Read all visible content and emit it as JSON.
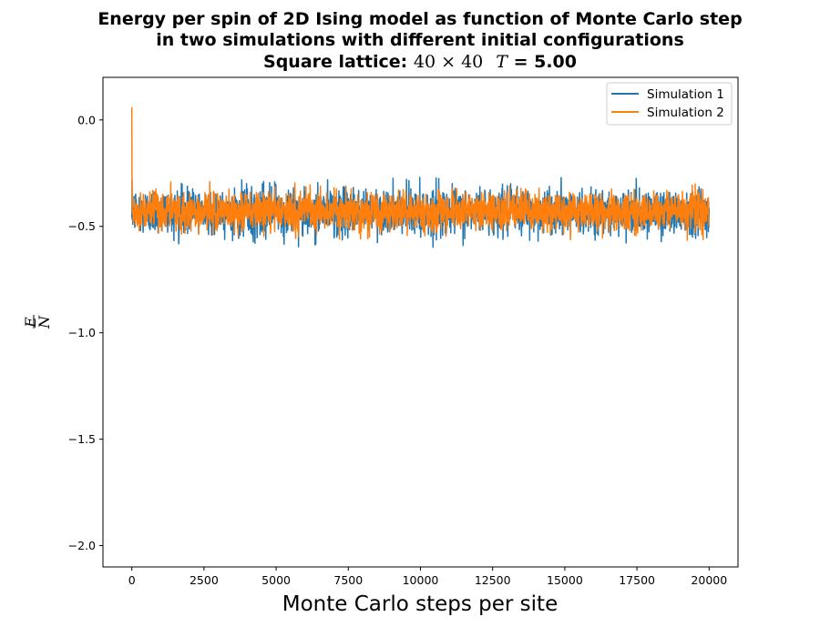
{
  "chart_data": {
    "type": "line",
    "title_lines": [
      "Energy per spin of 2D Ising model as function of Monte Carlo step",
      "in two simulations with different initial configurations"
    ],
    "title_line3": {
      "prefix": "Square lattice: ",
      "lattice": "40 × 40",
      "temp_symbol": "T",
      "temp_value": " = 5.00"
    },
    "xlabel": "Monte Carlo steps per site",
    "ylabel": {
      "numerator": "E",
      "denominator": "N"
    },
    "xlim": [
      -1000,
      21000
    ],
    "ylim": [
      -2.1,
      0.2
    ],
    "xticks": [
      0,
      2500,
      5000,
      7500,
      10000,
      12500,
      15000,
      17500,
      20000
    ],
    "xtick_labels": [
      "0",
      "2500",
      "5000",
      "7500",
      "10000",
      "12500",
      "15000",
      "17500",
      "20000"
    ],
    "yticks": [
      0.0,
      -0.5,
      -1.0,
      -1.5,
      -2.0
    ],
    "ytick_labels": [
      "0.0",
      "−0.5",
      "−1.0",
      "−1.5",
      "−2.0"
    ],
    "legend_position": "top-right",
    "series": [
      {
        "name": "Simulation 1",
        "color": "#1f77b4",
        "initial_value": -0.46,
        "equilibrium_mean": -0.43,
        "fluctuation_min": -0.6,
        "fluctuation_max": -0.27,
        "x_range": [
          0,
          20000
        ]
      },
      {
        "name": "Simulation 2",
        "color": "#ff7f0e",
        "initial_value": 0.06,
        "equilibrium_mean": -0.43,
        "fluctuation_min": -0.57,
        "fluctuation_max": -0.29,
        "x_range": [
          0,
          20000
        ]
      }
    ]
  }
}
